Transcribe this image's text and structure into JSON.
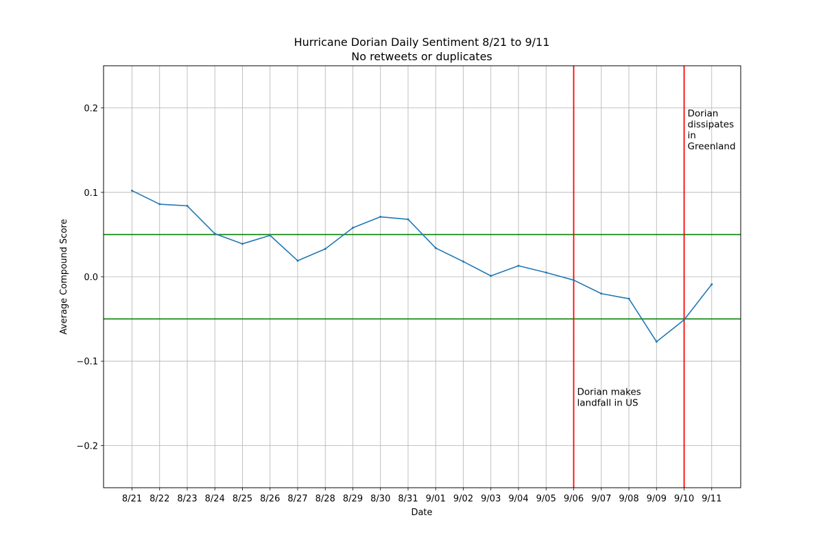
{
  "chart_data": {
    "type": "line",
    "title": "Hurricane Dorian Daily Sentiment 8/21 to 9/11",
    "subtitle": "No retweets or duplicates",
    "xlabel": "Date",
    "ylabel": "Average Compound Score",
    "ylim": [
      -0.25,
      0.25
    ],
    "yticks": [
      0.2,
      0.1,
      0.0,
      -0.1,
      -0.2
    ],
    "ytick_labels": [
      "0.2",
      "0.1",
      "0.0",
      "−0.1",
      "−0.2"
    ],
    "grid": true,
    "categories": [
      "8/21",
      "8/22",
      "8/23",
      "8/24",
      "8/25",
      "8/26",
      "8/27",
      "8/28",
      "8/29",
      "8/30",
      "8/31",
      "9/01",
      "9/02",
      "9/03",
      "9/04",
      "9/05",
      "9/06",
      "9/07",
      "9/08",
      "9/09",
      "9/10",
      "9/11"
    ],
    "series": [
      {
        "values": [
          0.102,
          0.086,
          0.084,
          0.051,
          0.039,
          0.049,
          0.019,
          0.033,
          0.058,
          0.071,
          0.068,
          0.034,
          0.018,
          0.001,
          0.013,
          0.005,
          -0.004,
          -0.02,
          -0.026,
          -0.077,
          -0.051,
          -0.009
        ],
        "color": "#1f77b4"
      }
    ],
    "hlines": [
      {
        "y": 0.05,
        "color": "#008000"
      },
      {
        "y": -0.05,
        "color": "#008000"
      }
    ],
    "vlines": [
      {
        "x": "9/06",
        "color": "#ff0000",
        "text_lines": [
          "Dorian makes",
          "landfall in US"
        ],
        "text_y": -0.14
      },
      {
        "x": "9/10",
        "color": "#ff0000",
        "text_lines": [
          "Dorian",
          "dissipates",
          "in",
          "Greenland"
        ],
        "text_y": 0.19
      }
    ]
  }
}
